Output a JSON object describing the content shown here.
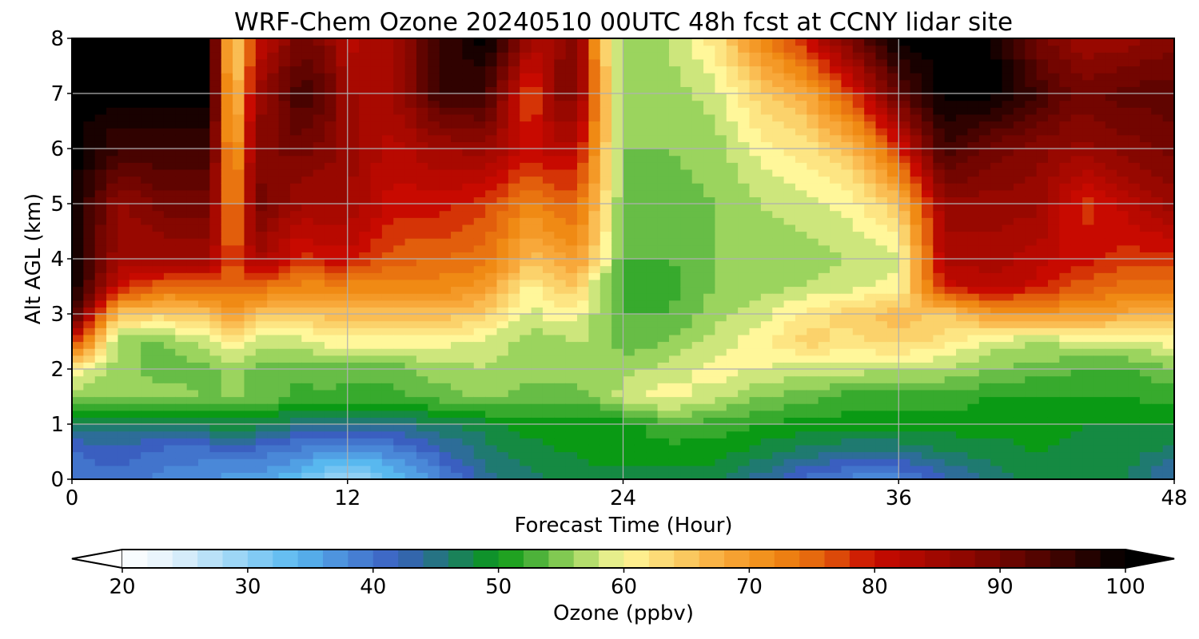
{
  "chart_data": {
    "type": "heatmap",
    "title": "WRF-Chem Ozone  20240510 00UTC 48h fcst at CCNY lidar site",
    "xlabel": "Forecast Time (Hour)",
    "ylabel": "Alt AGL (km)",
    "xlim": [
      0,
      48
    ],
    "ylim": [
      0,
      8
    ],
    "x_ticks": [
      0,
      12,
      24,
      36,
      48
    ],
    "y_ticks": [
      0,
      1,
      2,
      3,
      4,
      5,
      6,
      7,
      8
    ],
    "grid": true,
    "hours": [
      0,
      2,
      4,
      6,
      7,
      8,
      10,
      11,
      12,
      14,
      16,
      18,
      20,
      21,
      22,
      23,
      24,
      26,
      28,
      30,
      32,
      34,
      36,
      38,
      40,
      42,
      44,
      46,
      48
    ],
    "altitudes_km": [
      0,
      0.5,
      1,
      1.5,
      2,
      2.5,
      3,
      3.5,
      4,
      5,
      6,
      7,
      8
    ],
    "values_ppbv": [
      [
        40,
        41,
        46,
        56,
        60,
        80,
        95,
        100,
        100,
        100,
        100,
        100,
        100
      ],
      [
        40,
        42,
        46,
        55,
        56,
        55,
        65,
        80,
        85,
        86,
        95,
        100,
        100
      ],
      [
        38,
        40,
        47,
        56,
        54,
        55,
        64,
        75,
        85,
        90,
        95,
        100,
        100
      ],
      [
        37,
        40,
        48,
        55,
        54,
        58,
        66,
        75,
        85,
        90,
        95,
        100,
        100
      ],
      [
        36,
        40,
        48,
        55,
        56,
        62,
        70,
        75,
        75,
        70,
        66,
        62,
        60
      ],
      [
        36,
        40,
        48,
        55,
        54,
        58,
        66,
        75,
        85,
        90,
        88,
        85,
        80
      ],
      [
        33,
        38,
        45,
        52,
        54,
        58,
        64,
        72,
        78,
        85,
        90,
        95,
        90
      ],
      [
        30,
        37,
        45,
        53,
        54,
        60,
        66,
        72,
        80,
        85,
        88,
        92,
        88
      ],
      [
        28,
        36,
        44,
        52,
        54,
        60,
        66,
        72,
        80,
        85,
        86,
        85,
        82
      ],
      [
        33,
        38,
        45,
        52,
        54,
        60,
        66,
        72,
        76,
        80,
        82,
        85,
        85
      ],
      [
        38,
        42,
        47,
        54,
        56,
        60,
        66,
        72,
        75,
        80,
        85,
        95,
        95
      ],
      [
        44,
        46,
        48,
        56,
        57,
        58,
        64,
        70,
        74,
        78,
        86,
        95,
        100
      ],
      [
        46,
        48,
        50,
        54,
        56,
        56,
        58,
        60,
        66,
        72,
        80,
        75,
        85
      ],
      [
        47,
        49,
        50,
        54,
        56,
        56,
        60,
        64,
        68,
        75,
        82,
        88,
        85
      ],
      [
        47,
        49,
        50,
        54,
        56,
        57,
        60,
        65,
        70,
        75,
        82,
        88,
        90
      ],
      [
        48,
        50,
        50,
        55,
        57,
        56,
        56,
        56,
        62,
        65,
        68,
        70,
        66
      ],
      [
        48,
        50,
        50,
        58,
        56,
        54,
        53,
        52,
        53,
        54,
        55,
        55,
        56
      ],
      [
        48,
        50,
        53,
        60,
        58,
        55,
        53,
        52,
        53,
        54,
        55,
        56,
        57
      ],
      [
        48,
        50,
        52,
        58,
        60,
        58,
        56,
        55,
        55,
        55,
        56,
        58,
        62
      ],
      [
        44,
        48,
        51,
        55,
        59,
        60,
        58,
        56,
        56,
        57,
        60,
        64,
        72
      ],
      [
        40,
        46,
        50,
        54,
        58,
        64,
        62,
        57,
        56,
        58,
        62,
        68,
        80
      ],
      [
        38,
        45,
        50,
        52,
        58,
        62,
        64,
        58,
        57,
        60,
        66,
        78,
        90
      ],
      [
        38,
        45,
        50,
        52,
        57,
        64,
        66,
        60,
        58,
        65,
        78,
        92,
        100
      ],
      [
        42,
        47,
        50,
        52,
        57,
        62,
        64,
        80,
        84,
        86,
        95,
        100,
        100
      ],
      [
        46,
        48,
        50,
        51,
        55,
        58,
        70,
        82,
        84,
        86,
        90,
        100,
        100
      ],
      [
        48,
        49,
        50,
        51,
        54,
        57,
        70,
        80,
        82,
        86,
        88,
        95,
        90
      ],
      [
        48,
        48,
        49,
        51,
        53,
        58,
        70,
        76,
        80,
        78,
        86,
        90,
        85
      ],
      [
        47,
        48,
        49,
        51,
        53,
        58,
        68,
        74,
        78,
        82,
        88,
        92,
        86
      ],
      [
        42,
        46,
        49,
        52,
        55,
        60,
        68,
        74,
        78,
        86,
        90,
        92,
        88
      ]
    ]
  },
  "colorbar": {
    "label": "Ozone  (ppbv)",
    "min": 20,
    "max": 100,
    "ticks": [
      20,
      30,
      40,
      50,
      60,
      70,
      80,
      90,
      100
    ],
    "extend": "both",
    "stops": [
      {
        "v": 20,
        "c": "#ffffff"
      },
      {
        "v": 24,
        "c": "#e3f2fb"
      },
      {
        "v": 30,
        "c": "#8fd0f5"
      },
      {
        "v": 34,
        "c": "#58b8ef"
      },
      {
        "v": 38,
        "c": "#4a88d8"
      },
      {
        "v": 42,
        "c": "#3a5fc0"
      },
      {
        "v": 46,
        "c": "#1f7a70"
      },
      {
        "v": 50,
        "c": "#0a9a14"
      },
      {
        "v": 53,
        "c": "#4db23a"
      },
      {
        "v": 56,
        "c": "#9bd45e"
      },
      {
        "v": 60,
        "c": "#fff79a"
      },
      {
        "v": 64,
        "c": "#fbd26b"
      },
      {
        "v": 68,
        "c": "#f8a83a"
      },
      {
        "v": 72,
        "c": "#f08a14"
      },
      {
        "v": 76,
        "c": "#e25e0c"
      },
      {
        "v": 80,
        "c": "#c80a00"
      },
      {
        "v": 86,
        "c": "#980800"
      },
      {
        "v": 92,
        "c": "#600400"
      },
      {
        "v": 96,
        "c": "#300200"
      },
      {
        "v": 100,
        "c": "#000000"
      }
    ]
  }
}
